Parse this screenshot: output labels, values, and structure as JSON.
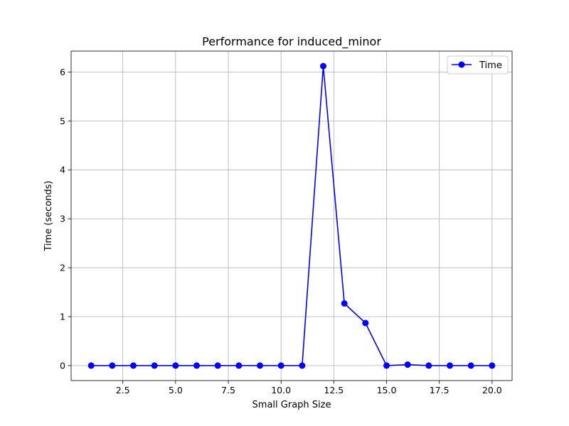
{
  "chart_data": {
    "type": "line",
    "title": "Performance for induced_minor",
    "xlabel": "Small Graph Size",
    "ylabel": "Time (seconds)",
    "xlim": [
      0.05,
      20.95
    ],
    "ylim": [
      -0.306,
      6.426
    ],
    "x_ticks": [
      2.5,
      5.0,
      7.5,
      10.0,
      12.5,
      15.0,
      17.5,
      20.0
    ],
    "x_tick_labels": [
      "2.5",
      "5.0",
      "7.5",
      "10.0",
      "12.5",
      "15.0",
      "17.5",
      "20.0"
    ],
    "y_ticks": [
      0,
      1,
      2,
      3,
      4,
      5,
      6
    ],
    "y_tick_labels": [
      "0",
      "1",
      "2",
      "3",
      "4",
      "5",
      "6"
    ],
    "grid": true,
    "legend_position": "top-right",
    "series": [
      {
        "name": "Time",
        "color": "#0000ff",
        "marker": "circle",
        "x": [
          1,
          2,
          3,
          4,
          5,
          6,
          7,
          8,
          9,
          10,
          11,
          12,
          13,
          14,
          15,
          16,
          17,
          18,
          19,
          20
        ],
        "values": [
          0.0,
          0.0,
          0.0,
          0.0,
          0.0,
          0.0,
          0.0,
          0.0,
          0.0,
          0.0,
          0.0,
          6.12,
          1.27,
          0.87,
          0.0,
          0.02,
          0.0,
          0.0,
          0.0,
          0.0
        ]
      }
    ]
  }
}
